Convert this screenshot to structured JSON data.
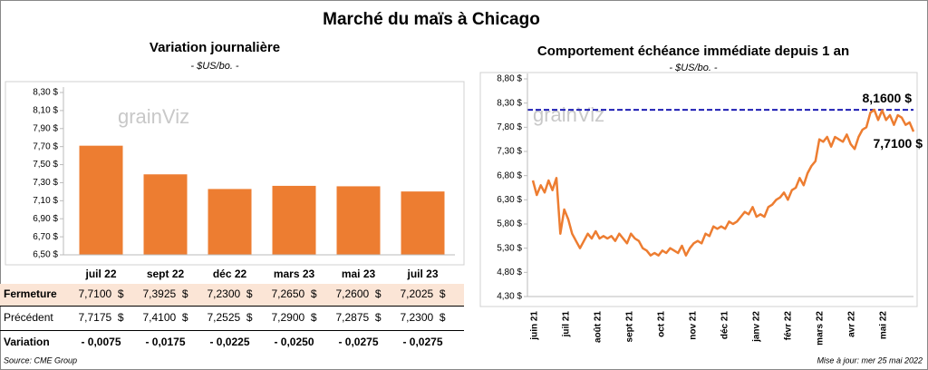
{
  "title": "Marché du maïs à Chicago",
  "watermark": "grainViz",
  "chart_data": [
    {
      "type": "bar",
      "title": "Variation journalière",
      "subtitle": "- $US/bo. -",
      "categories": [
        "juil 22",
        "sept 22",
        "déc 22",
        "mars 23",
        "mai 23",
        "juil 23"
      ],
      "values": [
        7.71,
        7.3925,
        7.23,
        7.265,
        7.26,
        7.2025
      ],
      "color": "#ed7d31",
      "ylim": [
        6.5,
        8.3
      ],
      "yticks": [
        {
          "value": 6.5,
          "label": "6,50 $"
        },
        {
          "value": 6.7,
          "label": "6,70 $"
        },
        {
          "value": 6.9,
          "label": "6,90 $"
        },
        {
          "value": 7.1,
          "label": "7,10 $"
        },
        {
          "value": 7.3,
          "label": "7,30 $"
        },
        {
          "value": 7.5,
          "label": "7,50 $"
        },
        {
          "value": 7.7,
          "label": "7,70 $"
        },
        {
          "value": 7.9,
          "label": "7,90 $"
        },
        {
          "value": 8.1,
          "label": "8,10 $"
        },
        {
          "value": 8.3,
          "label": "8,30 $"
        }
      ]
    },
    {
      "type": "line",
      "title": "Comportement  échéance immédiate  depuis 1 an",
      "subtitle": "- $US/bo. -",
      "x_tick_labels": [
        "juin 21",
        "juil 21",
        "août 21",
        "sept 21",
        "oct 21",
        "nov 21",
        "déc 21",
        "janv 22",
        "févr 22",
        "mars 22",
        "avr 22",
        "mai 22"
      ],
      "values": [
        6.7,
        6.4,
        6.6,
        6.45,
        6.7,
        6.5,
        6.75,
        5.6,
        6.1,
        5.9,
        5.6,
        5.45,
        5.3,
        5.45,
        5.6,
        5.5,
        5.65,
        5.5,
        5.55,
        5.5,
        5.55,
        5.45,
        5.6,
        5.5,
        5.4,
        5.6,
        5.5,
        5.45,
        5.3,
        5.25,
        5.15,
        5.2,
        5.15,
        5.25,
        5.2,
        5.3,
        5.25,
        5.2,
        5.35,
        5.15,
        5.3,
        5.4,
        5.45,
        5.4,
        5.6,
        5.55,
        5.75,
        5.7,
        5.75,
        5.7,
        5.85,
        5.8,
        5.85,
        5.95,
        6.05,
        6.0,
        6.15,
        5.95,
        6.0,
        5.95,
        6.15,
        6.2,
        6.3,
        6.35,
        6.45,
        6.3,
        6.5,
        6.55,
        6.75,
        6.6,
        6.85,
        7.0,
        7.1,
        7.55,
        7.5,
        7.6,
        7.4,
        7.6,
        7.55,
        7.5,
        7.65,
        7.45,
        7.35,
        7.6,
        7.75,
        7.8,
        8.1,
        8.16,
        7.95,
        8.15,
        7.95,
        8.05,
        7.85,
        8.05,
        8.0,
        7.85,
        7.9,
        7.71
      ],
      "color": "#ed7d31",
      "ylim": [
        4.3,
        8.8
      ],
      "yticks": [
        {
          "value": 4.3,
          "label": "4,30 $"
        },
        {
          "value": 4.8,
          "label": "4,80 $"
        },
        {
          "value": 5.3,
          "label": "5,30 $"
        },
        {
          "value": 5.8,
          "label": "5,80 $"
        },
        {
          "value": 6.3,
          "label": "6,30 $"
        },
        {
          "value": 6.8,
          "label": "6,80 $"
        },
        {
          "value": 7.3,
          "label": "7,30 $"
        },
        {
          "value": 7.8,
          "label": "7,80 $"
        },
        {
          "value": 8.3,
          "label": "8,30 $"
        },
        {
          "value": 8.8,
          "label": "8,80 $"
        }
      ],
      "reference_line": {
        "value": 8.16,
        "label": "8,1600 $",
        "color": "#1f1fb4"
      },
      "last_label": {
        "value": 7.71,
        "label": "7,7100 $"
      }
    }
  ],
  "table": {
    "rows": [
      {
        "label": "Fermeture",
        "cells": [
          "7,7100  $",
          "7,3925  $",
          "7,2300  $",
          "7,2650  $",
          "7,2600  $",
          "7,2025  $"
        ]
      },
      {
        "label": "Précédent",
        "cells": [
          "7,7175  $",
          "7,4100  $",
          "7,2525  $",
          "7,2900  $",
          "7,2875  $",
          "7,2300  $"
        ]
      },
      {
        "label": "Variation",
        "cells": [
          "- 0,0075",
          "- 0,0175",
          "- 0,0225",
          "- 0,0250",
          "- 0,0275",
          "- 0,0275"
        ]
      }
    ]
  },
  "footer": {
    "source": "Source: CME Group",
    "updated": "Mise à jour: mer 25 mai 2022"
  }
}
